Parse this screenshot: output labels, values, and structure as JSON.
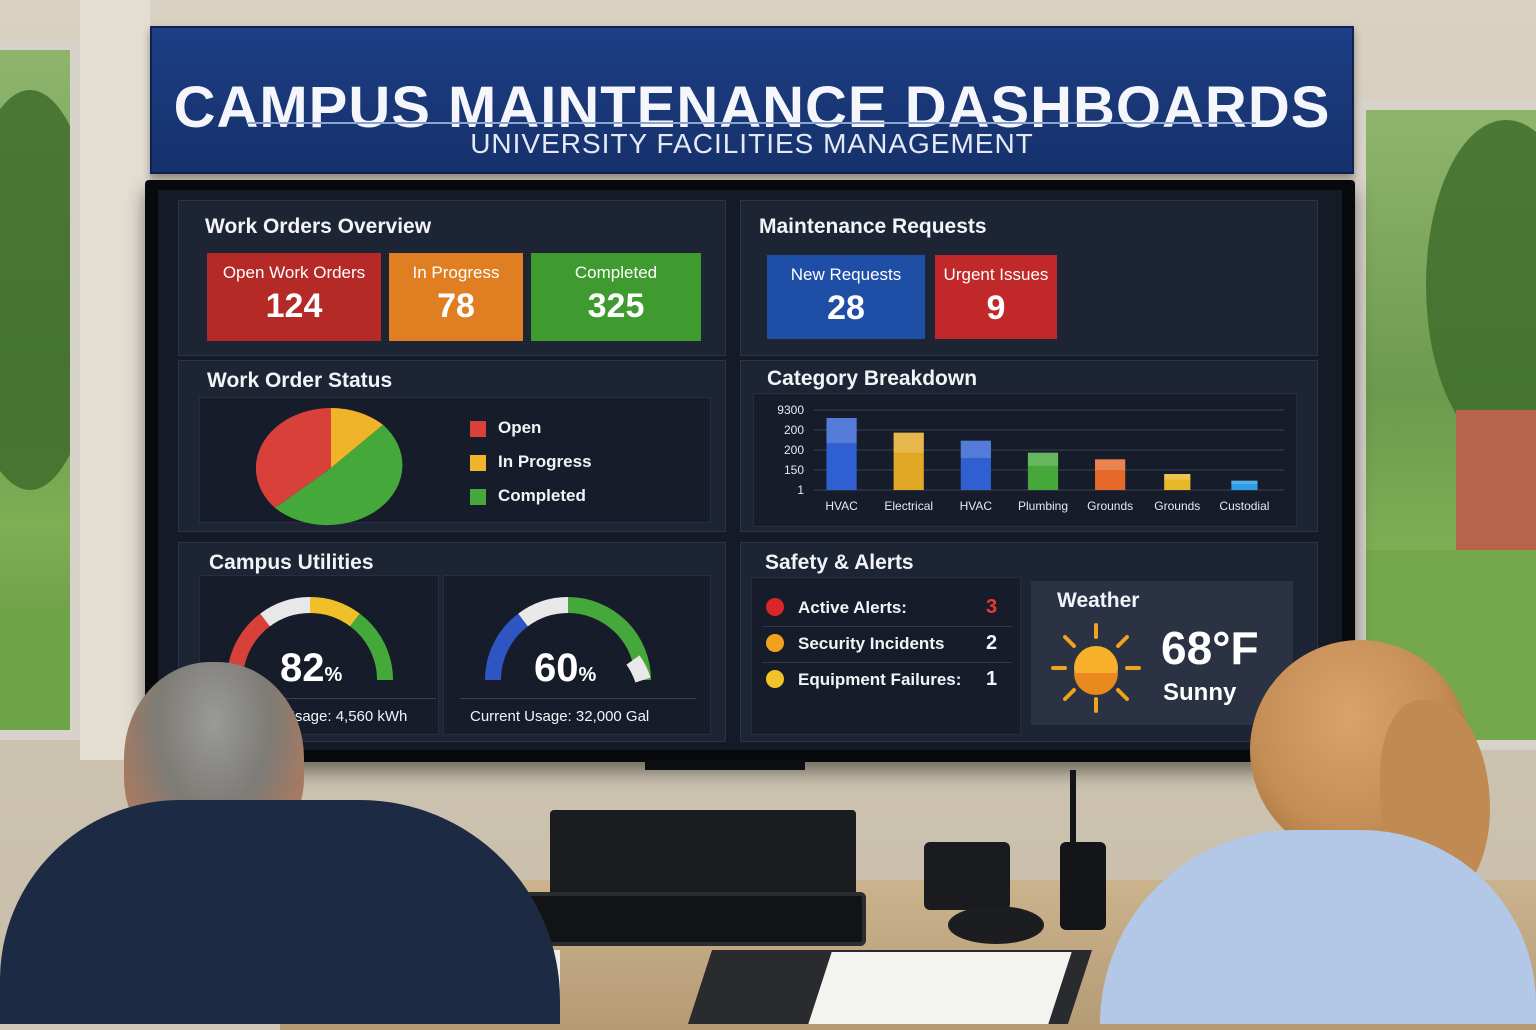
{
  "sign": {
    "title": "CAMPUS MAINTENANCE DASHBOARDS",
    "subtitle": "UNIVERSITY FACILITIES MANAGEMENT",
    "color": "#1d3e85"
  },
  "work_orders": {
    "title": "Work Orders Overview",
    "tiles": [
      {
        "label": "Open Work Orders",
        "value": "124",
        "color": "#b52a26"
      },
      {
        "label": "In Progress",
        "value": "78",
        "color": "#df7f22"
      },
      {
        "label": "Completed",
        "value": "325",
        "color": "#3f9a2f"
      }
    ]
  },
  "requests": {
    "title": "Maintenance Requests",
    "tiles": [
      {
        "label": "New Requests",
        "value": "28",
        "color": "#1f4ea7"
      },
      {
        "label": "Urgent Issues",
        "value": "9",
        "color": "#c0282a"
      }
    ]
  },
  "status": {
    "title": "Work Order Status",
    "legend": [
      {
        "label": "Open",
        "color": "#d8413a"
      },
      {
        "label": "In Progress",
        "color": "#f0b42a"
      },
      {
        "label": "Completed",
        "color": "#45a83a"
      }
    ]
  },
  "category": {
    "title": "Category Breakdown"
  },
  "chart_data": {
    "type": "bar",
    "title": "Category Breakdown",
    "categories": [
      "HVAC",
      "Electrical",
      "HVAC",
      "Plumbing",
      "Grounds",
      "Grounds",
      "Custodial"
    ],
    "category_labels": [
      "HVAC",
      "Electrical",
      "HVAC",
      "Plumbing",
      "Grounds",
      "Grounds",
      "Custodial"
    ],
    "tick_labels": [
      "1",
      "150",
      "200",
      "200",
      "9300"
    ],
    "series": [
      {
        "values": [
          270,
          215,
          185,
          140,
          115,
          60,
          35
        ],
        "colors": [
          "#2f5fd0",
          "#e0a825",
          "#2f5fd0",
          "#46a83b",
          "#e4692b",
          "#e8b82a",
          "#2d9ee6"
        ]
      }
    ],
    "ylim": [
      0,
      300
    ],
    "grid": true
  },
  "utilities": {
    "title": "Campus Utilities",
    "gauges": [
      {
        "value_text": "82",
        "unit": "%",
        "level": 0.82,
        "caption": "Usage: 4,560 kWh"
      },
      {
        "value_text": "60",
        "unit": "%",
        "level": 0.6,
        "caption": "Current Usage: 32,000 Gal"
      }
    ]
  },
  "safety": {
    "title": "Safety & Alerts",
    "rows": [
      {
        "label": "Active Alerts:",
        "value": "3",
        "dot": "#d9262a",
        "value_color": "#e53b32"
      },
      {
        "label": "Security Incidents",
        "value": "2",
        "dot": "#f0a21f",
        "value_color": "#f2f4f8"
      },
      {
        "label": "Equipment Failures:",
        "value": "1",
        "dot": "#f2c22a",
        "value_color": "#f2f4f8"
      }
    ]
  },
  "weather": {
    "title": "Weather",
    "temp": "68°F",
    "condition": "Sunny"
  }
}
